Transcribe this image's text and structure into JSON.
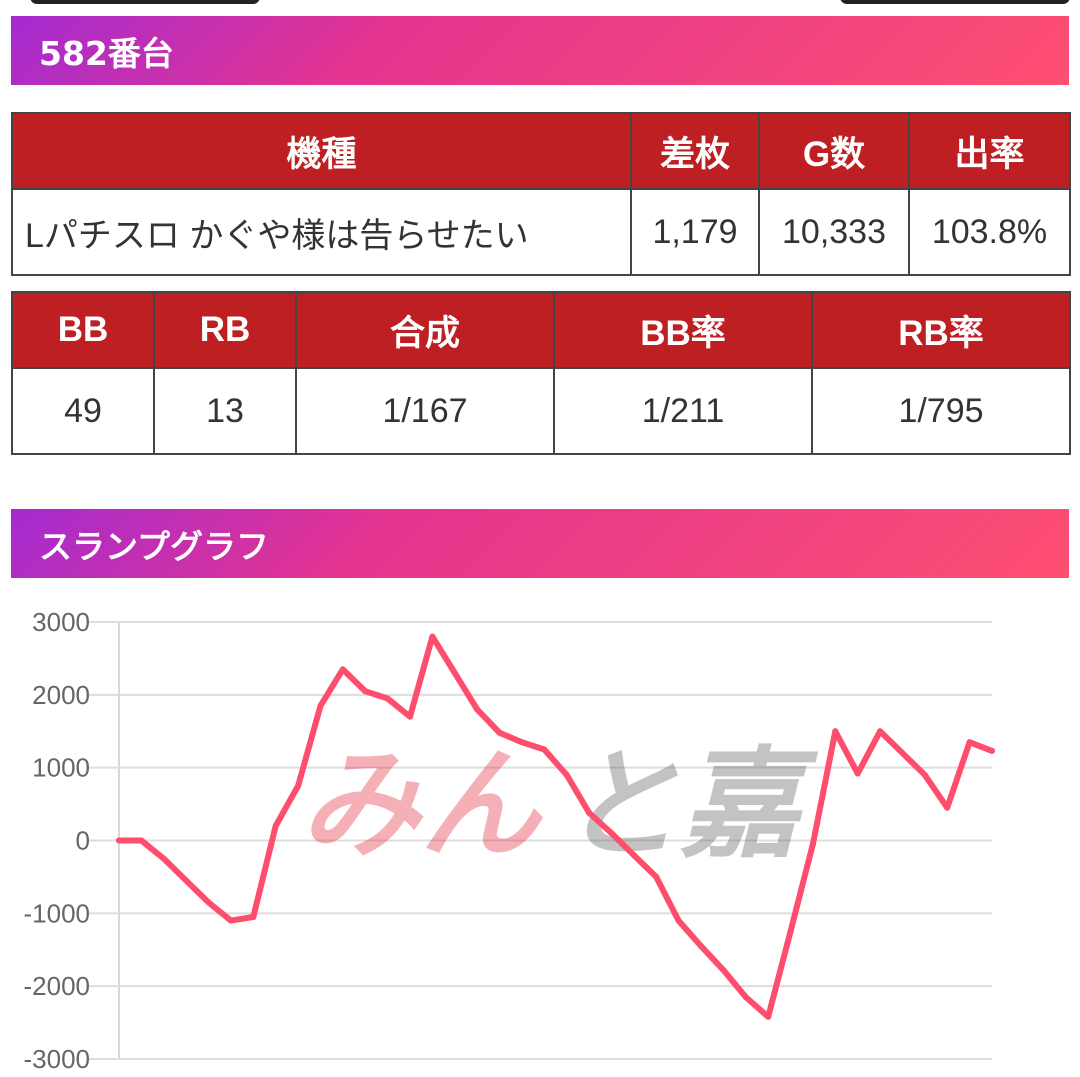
{
  "section1": {
    "title": "582番台"
  },
  "table1": {
    "headers": [
      "機種",
      "差枚",
      "G数",
      "出率"
    ],
    "row": [
      "Lパチスロ かぐや様は告らせたい",
      "1,179",
      "10,333",
      "103.8%"
    ]
  },
  "table2": {
    "headers": [
      "BB",
      "RB",
      "合成",
      "BB率",
      "RB率"
    ],
    "row": [
      "49",
      "13",
      "1/167",
      "1/211",
      "1/795"
    ]
  },
  "section2": {
    "title": "スランプグラフ"
  },
  "watermark": {
    "text_main": "みん",
    "text_accent": "と",
    "text_logo": "嘉"
  },
  "chart_data": {
    "type": "line",
    "title": "",
    "xlabel": "",
    "ylabel": "",
    "ylim": [
      -3000,
      3000
    ],
    "yticks": [
      3000,
      2000,
      1000,
      0,
      -1000,
      -2000,
      -3000
    ],
    "grid": true,
    "line_color": "#ff4d6d",
    "x": [
      0,
      1,
      2,
      3,
      4,
      5,
      6,
      7,
      8,
      9,
      10,
      11,
      12,
      13,
      14,
      15,
      16,
      17,
      18,
      19,
      20,
      21,
      22,
      23,
      24,
      25,
      26,
      27,
      28,
      29,
      30,
      31,
      32,
      33,
      34,
      35,
      36,
      37,
      38,
      39
    ],
    "series": [
      {
        "values": [
          0,
          0,
          -250,
          -550,
          -850,
          -1100,
          -1050,
          200,
          750,
          1850,
          2350,
          2050,
          1950,
          1700,
          2800,
          2300,
          1800,
          1480,
          1350,
          1250,
          900,
          380,
          100,
          -200,
          -500,
          -1100,
          -1450,
          -1780,
          -2150,
          -2420,
          -1250,
          -50,
          1500,
          920,
          1500,
          1200,
          900,
          450,
          1350,
          1230
        ]
      }
    ]
  }
}
